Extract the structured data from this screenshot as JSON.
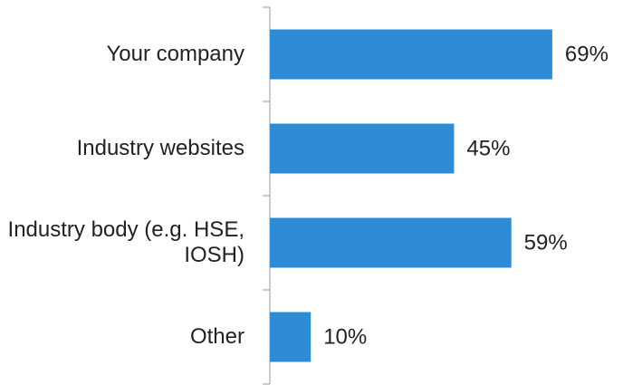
{
  "chart_data": {
    "type": "bar",
    "orientation": "horizontal",
    "categories": [
      "Your company",
      "Industry websites",
      "Industry body (e.g. HSE, IOSH)",
      "Other"
    ],
    "values": [
      69,
      45,
      59,
      10
    ],
    "value_labels": [
      "69%",
      "45%",
      "59%",
      "10%"
    ],
    "color": "#2e8bd6"
  }
}
